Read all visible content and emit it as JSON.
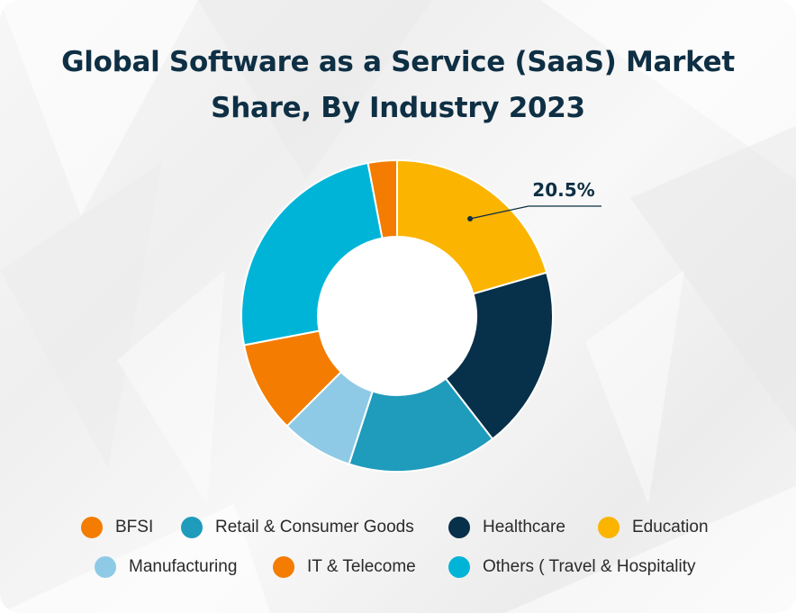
{
  "title_line1": "Global Software as a Service (SaaS) Market",
  "title_line2": "Share, By Industry 2023",
  "chart_data": {
    "type": "pie",
    "variant": "donut",
    "title": "Global Software as a Service (SaaS) Market Share, By Industry 2023",
    "slices": [
      {
        "label": "Education",
        "value": 20.5,
        "color": "#fbb400"
      },
      {
        "label": "Healthcare",
        "value": 19.0,
        "color": "#07304a"
      },
      {
        "label": "Retail & Consumer Goods",
        "value": 15.5,
        "color": "#1f9bbc"
      },
      {
        "label": "Manufacturing",
        "value": 7.5,
        "color": "#8ecae6"
      },
      {
        "label": "BFSI",
        "value": 9.5,
        "color": "#f47c00"
      },
      {
        "label": "Others ( Travel & Hospitality",
        "value": 25.0,
        "color": "#00b4d8"
      },
      {
        "label": "IT & Telecome",
        "value": 3.0,
        "color": "#f47c00"
      }
    ],
    "data_labels": [
      {
        "slice": "Education",
        "text": "20.5%"
      }
    ],
    "legend": {
      "placement": "bottom",
      "items": [
        {
          "label": "BFSI",
          "color": "#f47c00"
        },
        {
          "label": "Retail & Consumer Goods",
          "color": "#1f9bbc"
        },
        {
          "label": "Healthcare",
          "color": "#07304a"
        },
        {
          "label": "Education",
          "color": "#fbb400"
        },
        {
          "label": "Manufacturing",
          "color": "#8ecae6"
        },
        {
          "label": "IT & Telecome",
          "color": "#f47c00"
        },
        {
          "label": "Others ( Travel & Hospitality",
          "color": "#00b4d8"
        }
      ]
    }
  }
}
